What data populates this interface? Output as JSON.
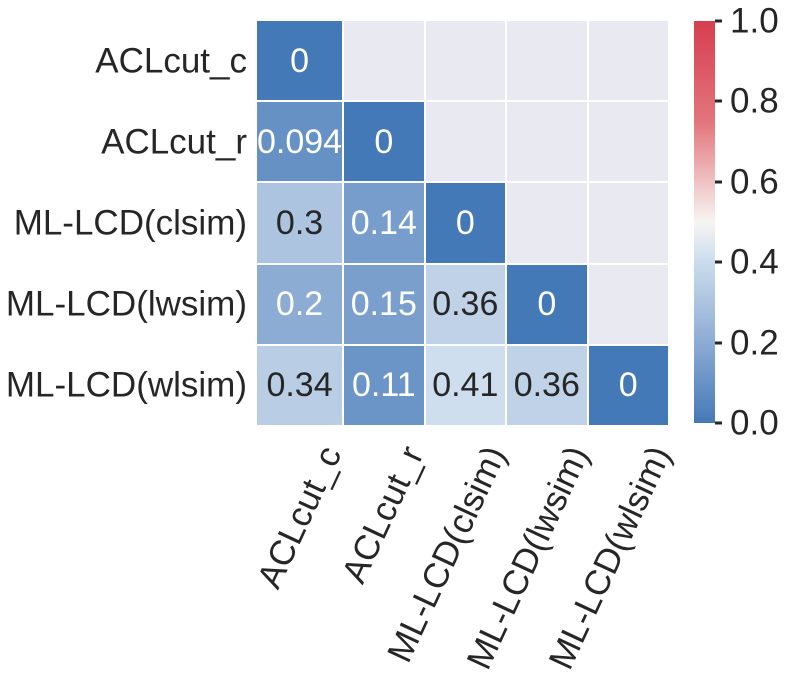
{
  "figure": {
    "background": "#ffffff",
    "masked_color": "#e9e9f1",
    "grid_line_color": "#ffffff",
    "label_color": "#262626"
  },
  "chart_data": {
    "type": "heatmap",
    "title": "",
    "xlabel": "",
    "ylabel": "",
    "categories": [
      "ACLcut_c",
      "ACLcut_r",
      "ML-LCD(clsim)",
      "ML-LCD(lwsim)",
      "ML-LCD(wlsim)"
    ],
    "matrix": [
      [
        0,
        null,
        null,
        null,
        null
      ],
      [
        0.094,
        0,
        null,
        null,
        null
      ],
      [
        0.3,
        0.14,
        0,
        null,
        null
      ],
      [
        0.2,
        0.15,
        0.36,
        0,
        null
      ],
      [
        0.34,
        0.11,
        0.41,
        0.36,
        0
      ]
    ],
    "cell_labels": [
      [
        "0",
        "",
        "",
        "",
        ""
      ],
      [
        "0.094",
        "0",
        "",
        "",
        ""
      ],
      [
        "0.3",
        "0.14",
        "0",
        "",
        ""
      ],
      [
        "0.2",
        "0.15",
        "0.36",
        "0",
        ""
      ],
      [
        "0.34",
        "0.11",
        "0.41",
        "0.36",
        "0"
      ]
    ],
    "mask": "upper-triangle",
    "colorbar": {
      "position": "right",
      "min": 0.0,
      "max": 1.0,
      "ticks": [
        {
          "value": 1.0,
          "label": "1.0"
        },
        {
          "value": 0.8,
          "label": "0.8"
        },
        {
          "value": 0.6,
          "label": "0.6"
        },
        {
          "value": 0.4,
          "label": "0.4"
        },
        {
          "value": 0.2,
          "label": "0.2"
        },
        {
          "value": 0.0,
          "label": "0.0"
        }
      ]
    },
    "colormap": {
      "name": "diverging-blue-white-red",
      "anchors": [
        {
          "t": 0.0,
          "color": "#4479b7"
        },
        {
          "t": 0.2,
          "color": "#8cacd4"
        },
        {
          "t": 0.41,
          "color": "#cfdeee"
        },
        {
          "t": 0.5,
          "color": "#f7f5f3"
        },
        {
          "t": 0.75,
          "color": "#e2757c"
        },
        {
          "t": 1.0,
          "color": "#d63e4e"
        }
      ]
    },
    "annotation": {
      "light_text": "#ffffff",
      "dark_text": "#262626",
      "light_text_below_value": 0.25
    },
    "grid": false,
    "legend": "none"
  }
}
